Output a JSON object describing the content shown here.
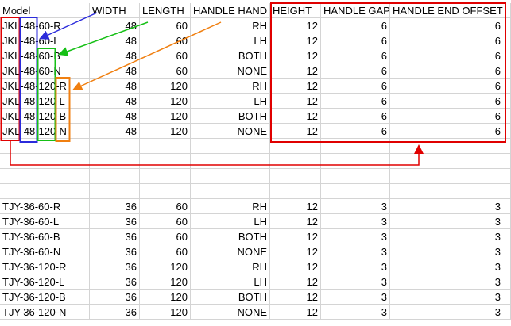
{
  "headers": [
    "Model",
    "WIDTH",
    "LENGTH",
    "HANDLE HAND",
    "HEIGHT",
    "HANDLE GAP",
    "HANDLE END OFFSET"
  ],
  "group1": [
    [
      "JKL-48-60-R",
      "48",
      "60",
      "RH",
      "12",
      "6",
      "6"
    ],
    [
      "JKL-48-60-L",
      "48",
      "60",
      "LH",
      "12",
      "6",
      "6"
    ],
    [
      "JKL-48-60-B",
      "48",
      "60",
      "BOTH",
      "12",
      "6",
      "6"
    ],
    [
      "JKL-48-60-N",
      "48",
      "60",
      "NONE",
      "12",
      "6",
      "6"
    ],
    [
      "JKL-48-120-R",
      "48",
      "120",
      "RH",
      "12",
      "6",
      "6"
    ],
    [
      "JKL-48-120-L",
      "48",
      "120",
      "LH",
      "12",
      "6",
      "6"
    ],
    [
      "JKL-48-120-B",
      "48",
      "120",
      "BOTH",
      "12",
      "6",
      "6"
    ],
    [
      "JKL-48-120-N",
      "48",
      "120",
      "NONE",
      "12",
      "6",
      "6"
    ]
  ],
  "group2": [
    [
      "TJY-36-60-R",
      "36",
      "60",
      "RH",
      "12",
      "3",
      "3"
    ],
    [
      "TJY-36-60-L",
      "36",
      "60",
      "LH",
      "12",
      "3",
      "3"
    ],
    [
      "TJY-36-60-B",
      "36",
      "60",
      "BOTH",
      "12",
      "3",
      "3"
    ],
    [
      "TJY-36-60-N",
      "36",
      "60",
      "NONE",
      "12",
      "3",
      "3"
    ],
    [
      "TJY-36-120-R",
      "36",
      "120",
      "RH",
      "12",
      "3",
      "3"
    ],
    [
      "TJY-36-120-L",
      "36",
      "120",
      "LH",
      "12",
      "3",
      "3"
    ],
    [
      "TJY-36-120-B",
      "36",
      "120",
      "BOTH",
      "12",
      "3",
      "3"
    ],
    [
      "TJY-36-120-N",
      "36",
      "120",
      "NONE",
      "12",
      "3",
      "3"
    ]
  ],
  "annotation_colors": {
    "prefix": "#e00000",
    "width": "#2b2bdb",
    "length": "#16c016",
    "hand": "#f07f10",
    "dims": "#e00000"
  }
}
